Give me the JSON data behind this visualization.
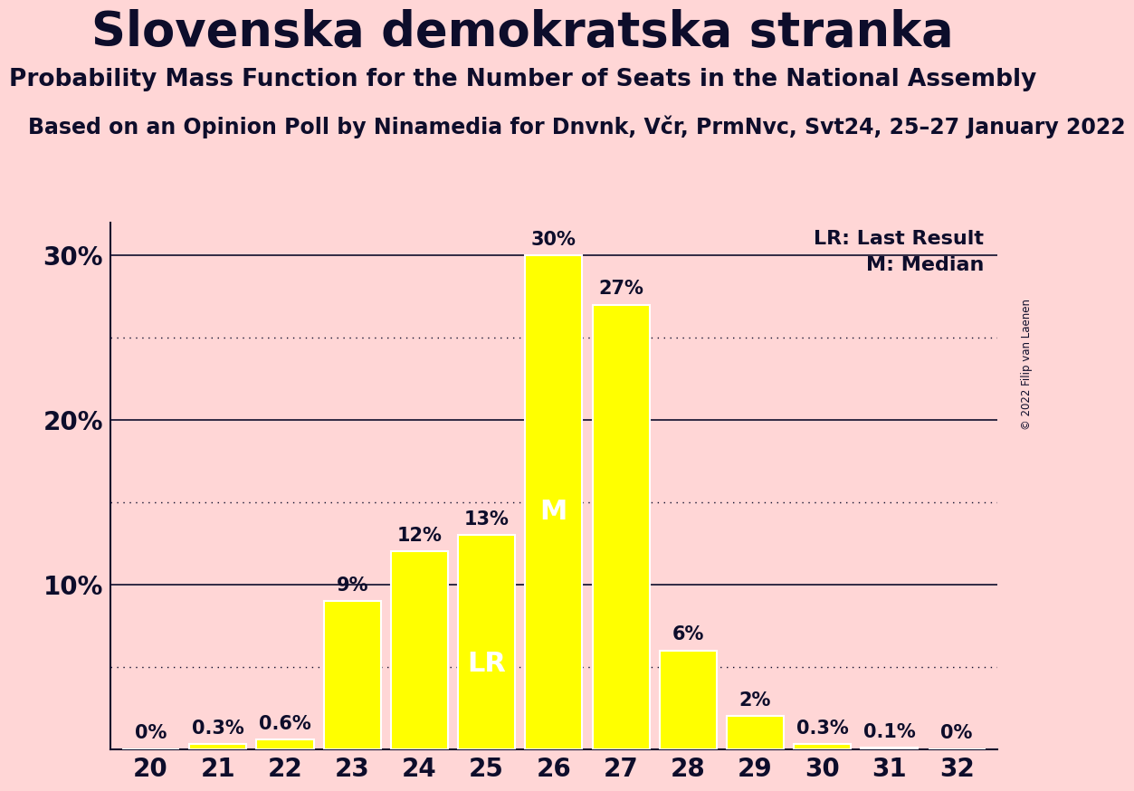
{
  "title": "Slovenska demokratska stranka",
  "subtitle": "Probability Mass Function for the Number of Seats in the National Assembly",
  "source_line": "Based on an Opinion Poll by Ninamedia for Dnvnk, Včr, PrmNvc, Svt24, 25–27 January 2022",
  "copyright": "© 2022 Filip van Laenen",
  "seats": [
    20,
    21,
    22,
    23,
    24,
    25,
    26,
    27,
    28,
    29,
    30,
    31,
    32
  ],
  "probabilities": [
    0.0,
    0.3,
    0.6,
    9.0,
    12.0,
    13.0,
    30.0,
    27.0,
    6.0,
    2.0,
    0.3,
    0.1,
    0.0
  ],
  "bar_color": "#FFFF00",
  "bar_edge_color": "#FFFFFF",
  "background_color": "#FFD6D6",
  "text_color": "#0D0D2B",
  "lr_seat": 25,
  "median_seat": 26,
  "lr_label": "LR",
  "median_label": "M",
  "legend_lr": "LR: Last Result",
  "legend_m": "M: Median",
  "ytick_labels": [
    "10%",
    "20%",
    "30%"
  ],
  "ytick_values": [
    10,
    20,
    30
  ],
  "dotted_lines": [
    5,
    15,
    25
  ],
  "solid_lines": [
    10,
    20,
    30
  ],
  "ylim_max": 32,
  "bar_label_fontsize": 15,
  "axis_tick_fontsize": 20,
  "title_fontsize": 38,
  "subtitle_fontsize": 19,
  "source_fontsize": 17,
  "legend_fontsize": 16
}
